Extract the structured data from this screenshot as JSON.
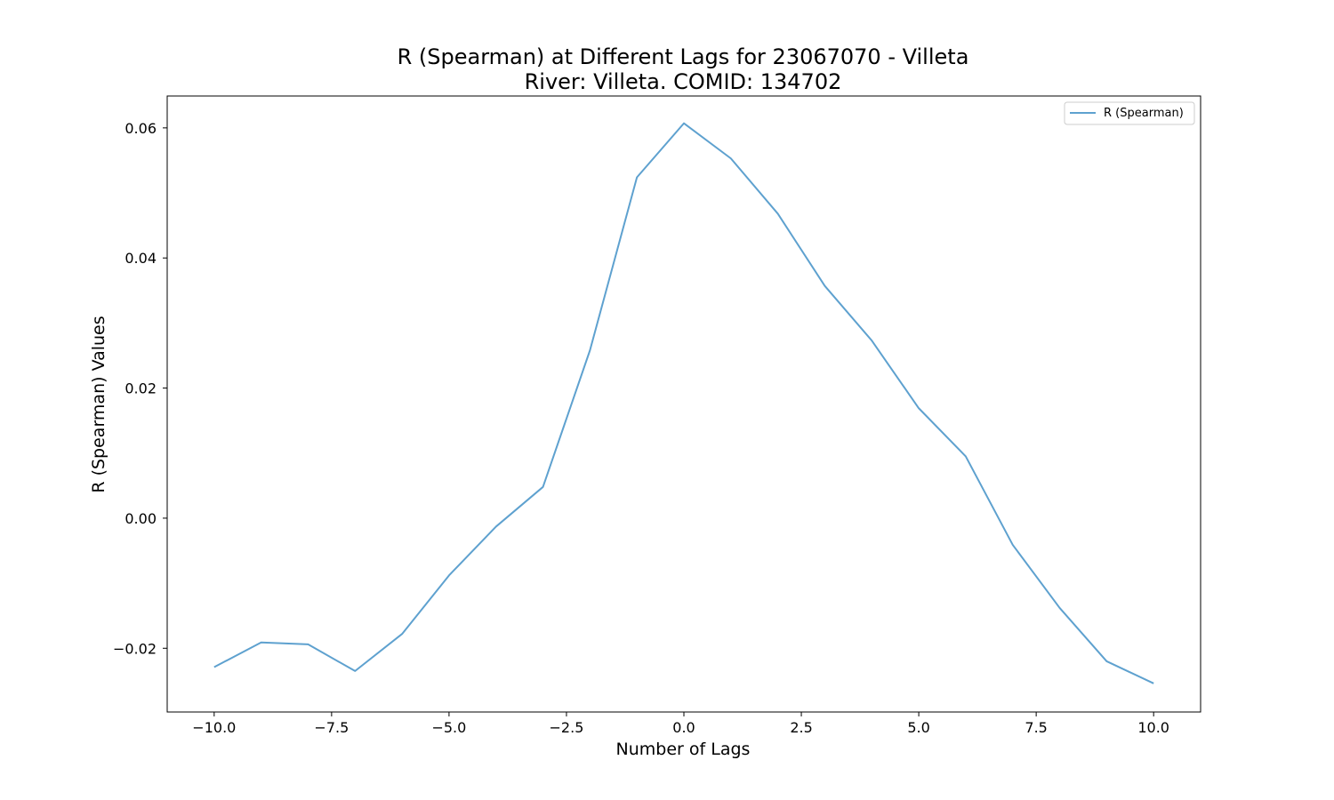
{
  "chart_data": {
    "type": "line",
    "title": "R (Spearman) at Different Lags for 23067070 - Villeta",
    "subtitle": "River: Villeta. COMID: 134702",
    "xlabel": "Number of Lags",
    "ylabel": "R (Spearman) Values",
    "xlim": [
      -11.0,
      11.0
    ],
    "ylim": [
      -0.0298,
      0.0649
    ],
    "xticks": [
      -10.0,
      -7.5,
      -5.0,
      -2.5,
      0.0,
      2.5,
      5.0,
      7.5,
      10.0
    ],
    "xtick_labels": [
      "−10.0",
      "−7.5",
      "−5.0",
      "−2.5",
      "0.0",
      "2.5",
      "5.0",
      "7.5",
      "10.0"
    ],
    "yticks": [
      -0.02,
      0.0,
      0.02,
      0.04,
      0.06
    ],
    "ytick_labels": [
      "−0.02",
      "0.00",
      "0.02",
      "0.04",
      "0.06"
    ],
    "grid": false,
    "legend_position": "upper right",
    "series": [
      {
        "name": "R (Spearman)",
        "color": "#5ea1cf",
        "x": [
          -10,
          -9,
          -8,
          -7,
          -6,
          -5,
          -4,
          -3,
          -2,
          -1,
          0,
          1,
          2,
          3,
          4,
          5,
          6,
          7,
          8,
          9,
          10
        ],
        "y": [
          -0.0229,
          -0.0191,
          -0.0194,
          -0.0235,
          -0.0178,
          -0.0088,
          -0.0013,
          0.0048,
          0.0258,
          0.0524,
          0.0607,
          0.0553,
          0.0468,
          0.0357,
          0.0273,
          0.0169,
          0.0095,
          -0.0041,
          -0.0138,
          -0.022,
          -0.0254
        ]
      }
    ]
  }
}
